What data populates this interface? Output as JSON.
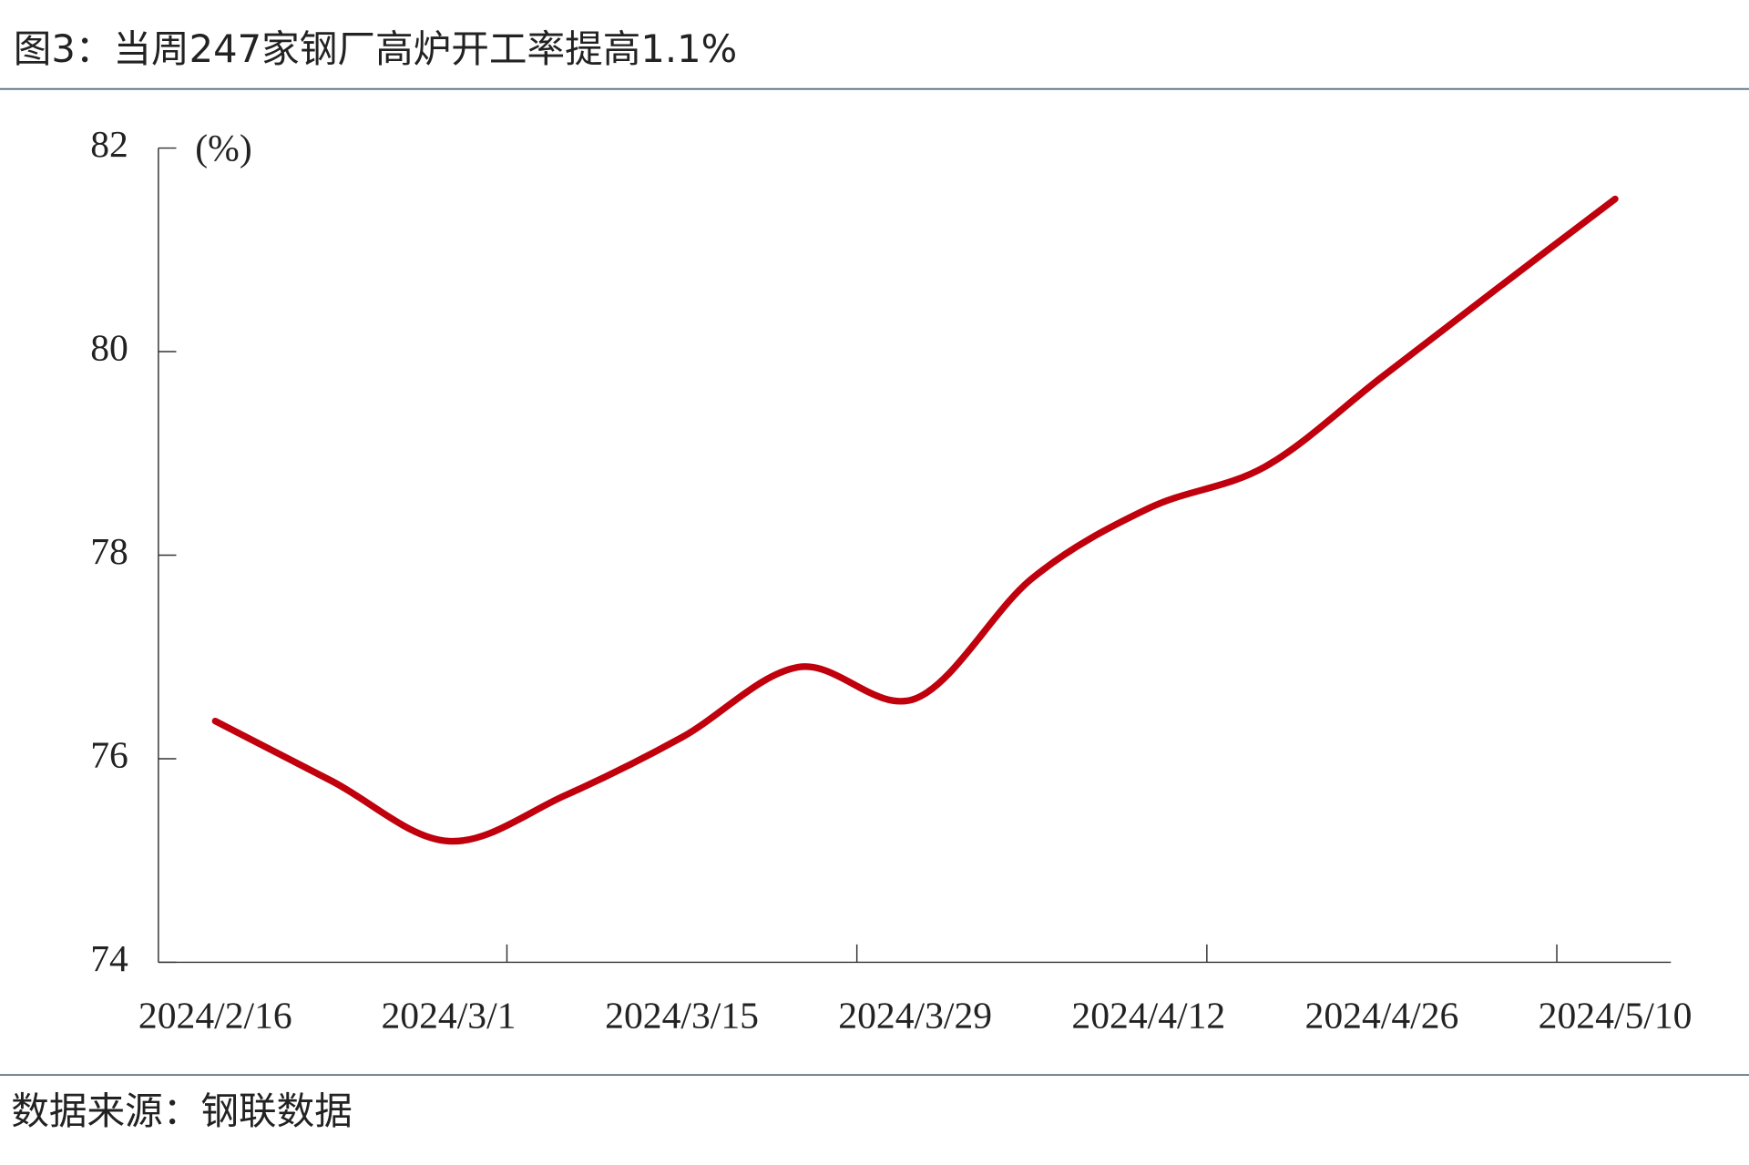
{
  "chart_data": {
    "type": "line",
    "title": "图3：当周247家钢厂高炉开工率提高1.1%",
    "y_axis_label": "(%)",
    "source": "数据来源：钢联数据",
    "categories": [
      "2024/2/16",
      null,
      "2024/3/1",
      null,
      "2024/3/15",
      null,
      "2024/3/29",
      null,
      "2024/4/12",
      null,
      "2024/4/26",
      null,
      "2024/5/10"
    ],
    "series": [
      {
        "name": "高炉开工率",
        "color": "#c0000c",
        "values": [
          76.37,
          75.78,
          75.19,
          75.64,
          76.21,
          76.9,
          76.59,
          77.77,
          78.46,
          78.87,
          79.75,
          80.63,
          81.5
        ]
      }
    ],
    "ylim": [
      74,
      82
    ],
    "yticks": [
      74,
      76,
      78,
      80,
      82
    ],
    "grid": false
  }
}
